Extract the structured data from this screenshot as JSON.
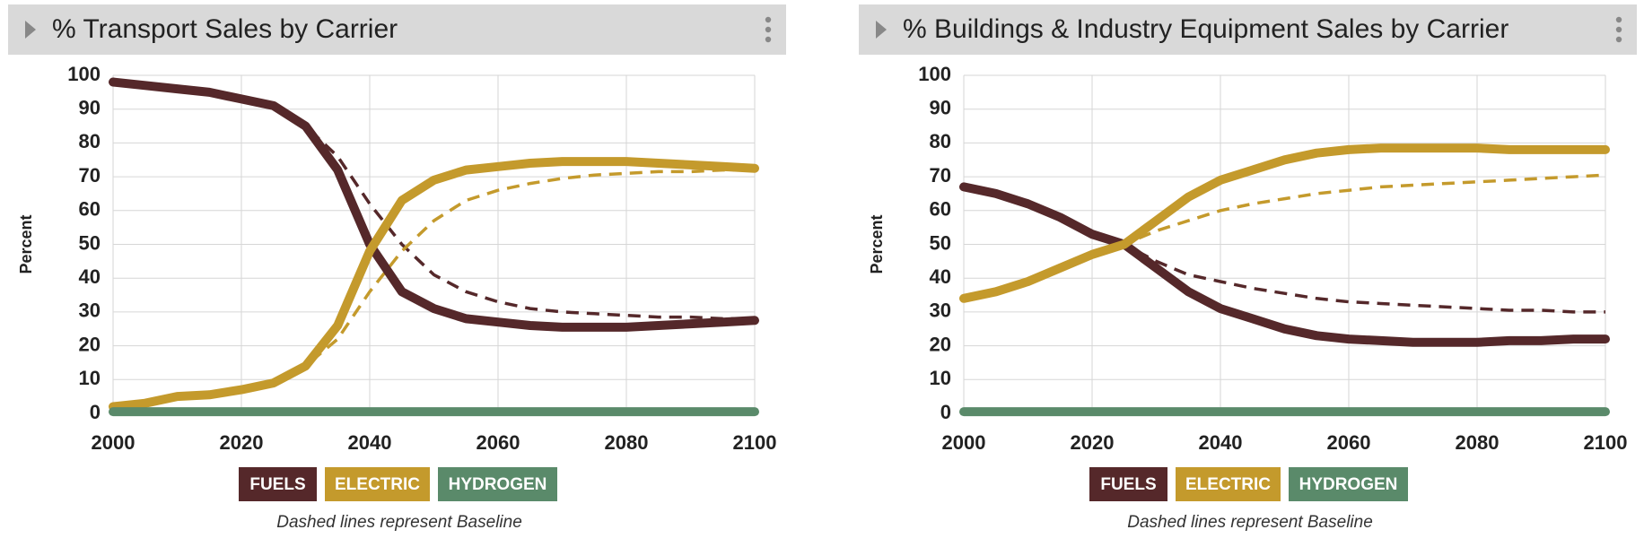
{
  "chart_data": [
    {
      "type": "line",
      "title": "% Transport Sales by Carrier",
      "y_label": "Percent",
      "note": "Dashed lines represent Baseline",
      "x": [
        2000,
        2005,
        2010,
        2015,
        2020,
        2025,
        2030,
        2035,
        2040,
        2045,
        2050,
        2055,
        2060,
        2065,
        2070,
        2075,
        2080,
        2085,
        2090,
        2095,
        2100
      ],
      "xlim": [
        2000,
        2100
      ],
      "xticks": [
        2000,
        2020,
        2040,
        2060,
        2080,
        2100
      ],
      "ylim": [
        0,
        100
      ],
      "yticks": [
        0,
        10,
        20,
        30,
        40,
        50,
        60,
        70,
        80,
        90,
        100
      ],
      "grid": true,
      "series": [
        {
          "name": "FUELS",
          "color": "#55282a",
          "values": [
            98,
            97,
            96,
            95,
            93,
            91,
            85,
            72,
            50,
            36,
            31,
            28,
            27,
            26,
            25.5,
            25.5,
            25.5,
            26,
            26.5,
            27,
            27.5
          ],
          "baseline_values": [
            98,
            97,
            96,
            95,
            93,
            91,
            85,
            76,
            62,
            50,
            41,
            36,
            33,
            31,
            30,
            29.5,
            29,
            28.5,
            28.5,
            28,
            28
          ]
        },
        {
          "name": "ELECTRIC",
          "color": "#c49a2c",
          "values": [
            2,
            3,
            5,
            5.5,
            7,
            9,
            14,
            26,
            48,
            63,
            69,
            72,
            73,
            74,
            74.5,
            74.5,
            74.5,
            74,
            73.5,
            73,
            72.5
          ],
          "baseline_values": [
            2,
            3,
            5,
            5.5,
            7,
            9,
            14,
            22,
            36,
            48,
            57,
            63,
            66,
            68,
            69.5,
            70.5,
            71,
            71.5,
            71.5,
            72,
            72
          ]
        },
        {
          "name": "HYDROGEN",
          "color": "#5a8a6a",
          "values": [
            0.5,
            0.5,
            0.5,
            0.5,
            0.5,
            0.5,
            0.5,
            0.5,
            0.5,
            0.5,
            0.5,
            0.5,
            0.5,
            0.5,
            0.5,
            0.5,
            0.5,
            0.5,
            0.5,
            0.5,
            0.5
          ]
        }
      ]
    },
    {
      "type": "line",
      "title": "% Buildings & Industry Equipment Sales by Carrier",
      "y_label": "Percent",
      "note": "Dashed lines represent Baseline",
      "x": [
        2000,
        2005,
        2010,
        2015,
        2020,
        2025,
        2030,
        2035,
        2040,
        2045,
        2050,
        2055,
        2060,
        2065,
        2070,
        2075,
        2080,
        2085,
        2090,
        2095,
        2100
      ],
      "xlim": [
        2000,
        2100
      ],
      "xticks": [
        2000,
        2020,
        2040,
        2060,
        2080,
        2100
      ],
      "ylim": [
        0,
        100
      ],
      "yticks": [
        0,
        10,
        20,
        30,
        40,
        50,
        60,
        70,
        80,
        90,
        100
      ],
      "grid": true,
      "series": [
        {
          "name": "FUELS",
          "color": "#55282a",
          "values": [
            67,
            65,
            62,
            58,
            53,
            50,
            43,
            36,
            31,
            28,
            25,
            23,
            22,
            21.5,
            21,
            21,
            21,
            21.5,
            21.5,
            22,
            22
          ],
          "baseline_values": [
            67,
            65,
            62,
            58,
            53,
            50,
            45,
            41,
            39,
            37,
            35.5,
            34,
            33,
            32.5,
            32,
            31.5,
            31,
            30.5,
            30.5,
            30,
            30
          ]
        },
        {
          "name": "ELECTRIC",
          "color": "#c49a2c",
          "values": [
            34,
            36,
            39,
            43,
            47,
            50,
            57,
            64,
            69,
            72,
            75,
            77,
            78,
            78.5,
            78.5,
            78.5,
            78.5,
            78,
            78,
            78,
            78
          ],
          "baseline_values": [
            34,
            36,
            39,
            43,
            47,
            50,
            54,
            57,
            60,
            62,
            63.5,
            65,
            66,
            67,
            67.5,
            68,
            68.5,
            69,
            69.5,
            70,
            70.5
          ]
        },
        {
          "name": "HYDROGEN",
          "color": "#5a8a6a",
          "values": [
            0.5,
            0.5,
            0.5,
            0.5,
            0.5,
            0.5,
            0.5,
            0.5,
            0.5,
            0.5,
            0.5,
            0.5,
            0.5,
            0.5,
            0.5,
            0.5,
            0.5,
            0.5,
            0.5,
            0.5,
            0.5
          ]
        }
      ]
    }
  ]
}
